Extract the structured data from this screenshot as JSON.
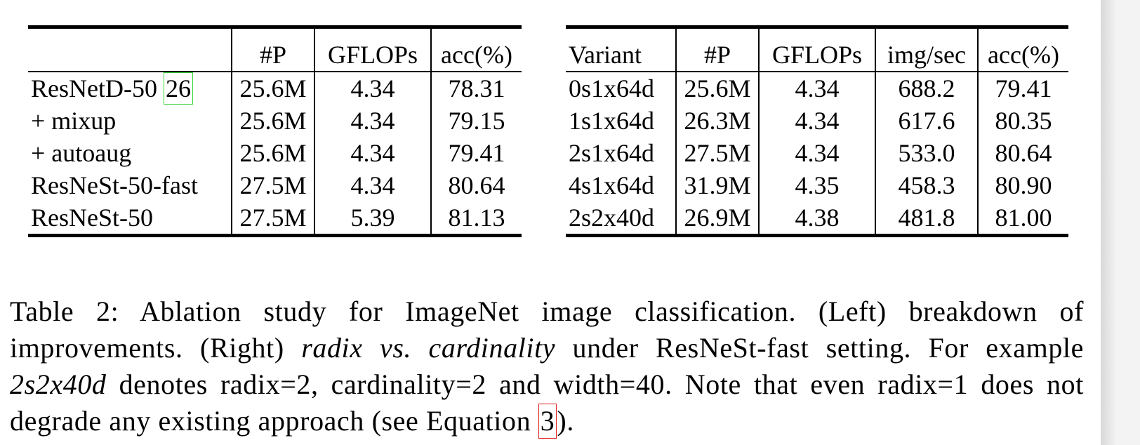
{
  "left_table": {
    "headers": [
      "",
      "#P",
      "GFLOPs",
      "acc(%)"
    ],
    "rows": [
      {
        "name": "ResNetD-50",
        "cite": "26",
        "params": "25.6M",
        "gflops": "4.34",
        "acc": "78.31"
      },
      {
        "name": "+ mixup",
        "params": "25.6M",
        "gflops": "4.34",
        "acc": "79.15"
      },
      {
        "name": "+ autoaug",
        "params": "25.6M",
        "gflops": "4.34",
        "acc": "79.41"
      },
      {
        "name": "ResNeSt-50-fast",
        "params": "27.5M",
        "gflops": "4.34",
        "acc": "80.64"
      },
      {
        "name": "ResNeSt-50",
        "params": "27.5M",
        "gflops": "5.39",
        "acc": "81.13"
      }
    ]
  },
  "right_table": {
    "headers": [
      "Variant",
      "#P",
      "GFLOPs",
      "img/sec",
      "acc(%)"
    ],
    "rows": [
      {
        "variant": "0s1x64d",
        "params": "25.6M",
        "gflops": "4.34",
        "imgsec": "688.2",
        "acc": "79.41"
      },
      {
        "variant": "1s1x64d",
        "params": "26.3M",
        "gflops": "4.34",
        "imgsec": "617.6",
        "acc": "80.35"
      },
      {
        "variant": "2s1x64d",
        "params": "27.5M",
        "gflops": "4.34",
        "imgsec": "533.0",
        "acc": "80.64"
      },
      {
        "variant": "4s1x64d",
        "params": "31.9M",
        "gflops": "4.35",
        "imgsec": "458.3",
        "acc": "80.90"
      },
      {
        "variant": "2s2x40d",
        "params": "26.9M",
        "gflops": "4.38",
        "imgsec": "481.8",
        "acc": "81.00"
      }
    ]
  },
  "caption": {
    "part1": "Table 2: Ablation study for ImageNet image classification. (Left) breakdown of improvements. (Right) ",
    "italic1": "radix vs. cardinality",
    "part2": " under ResNeSt-fast setting. For example ",
    "italic2": "2s2x40d",
    "part3": " denotes radix=2, cardinality=2 and width=40. Note that even radix=1 does not degrade any existing approach (see Equation ",
    "eq_ref": "3",
    "part4": ")."
  }
}
